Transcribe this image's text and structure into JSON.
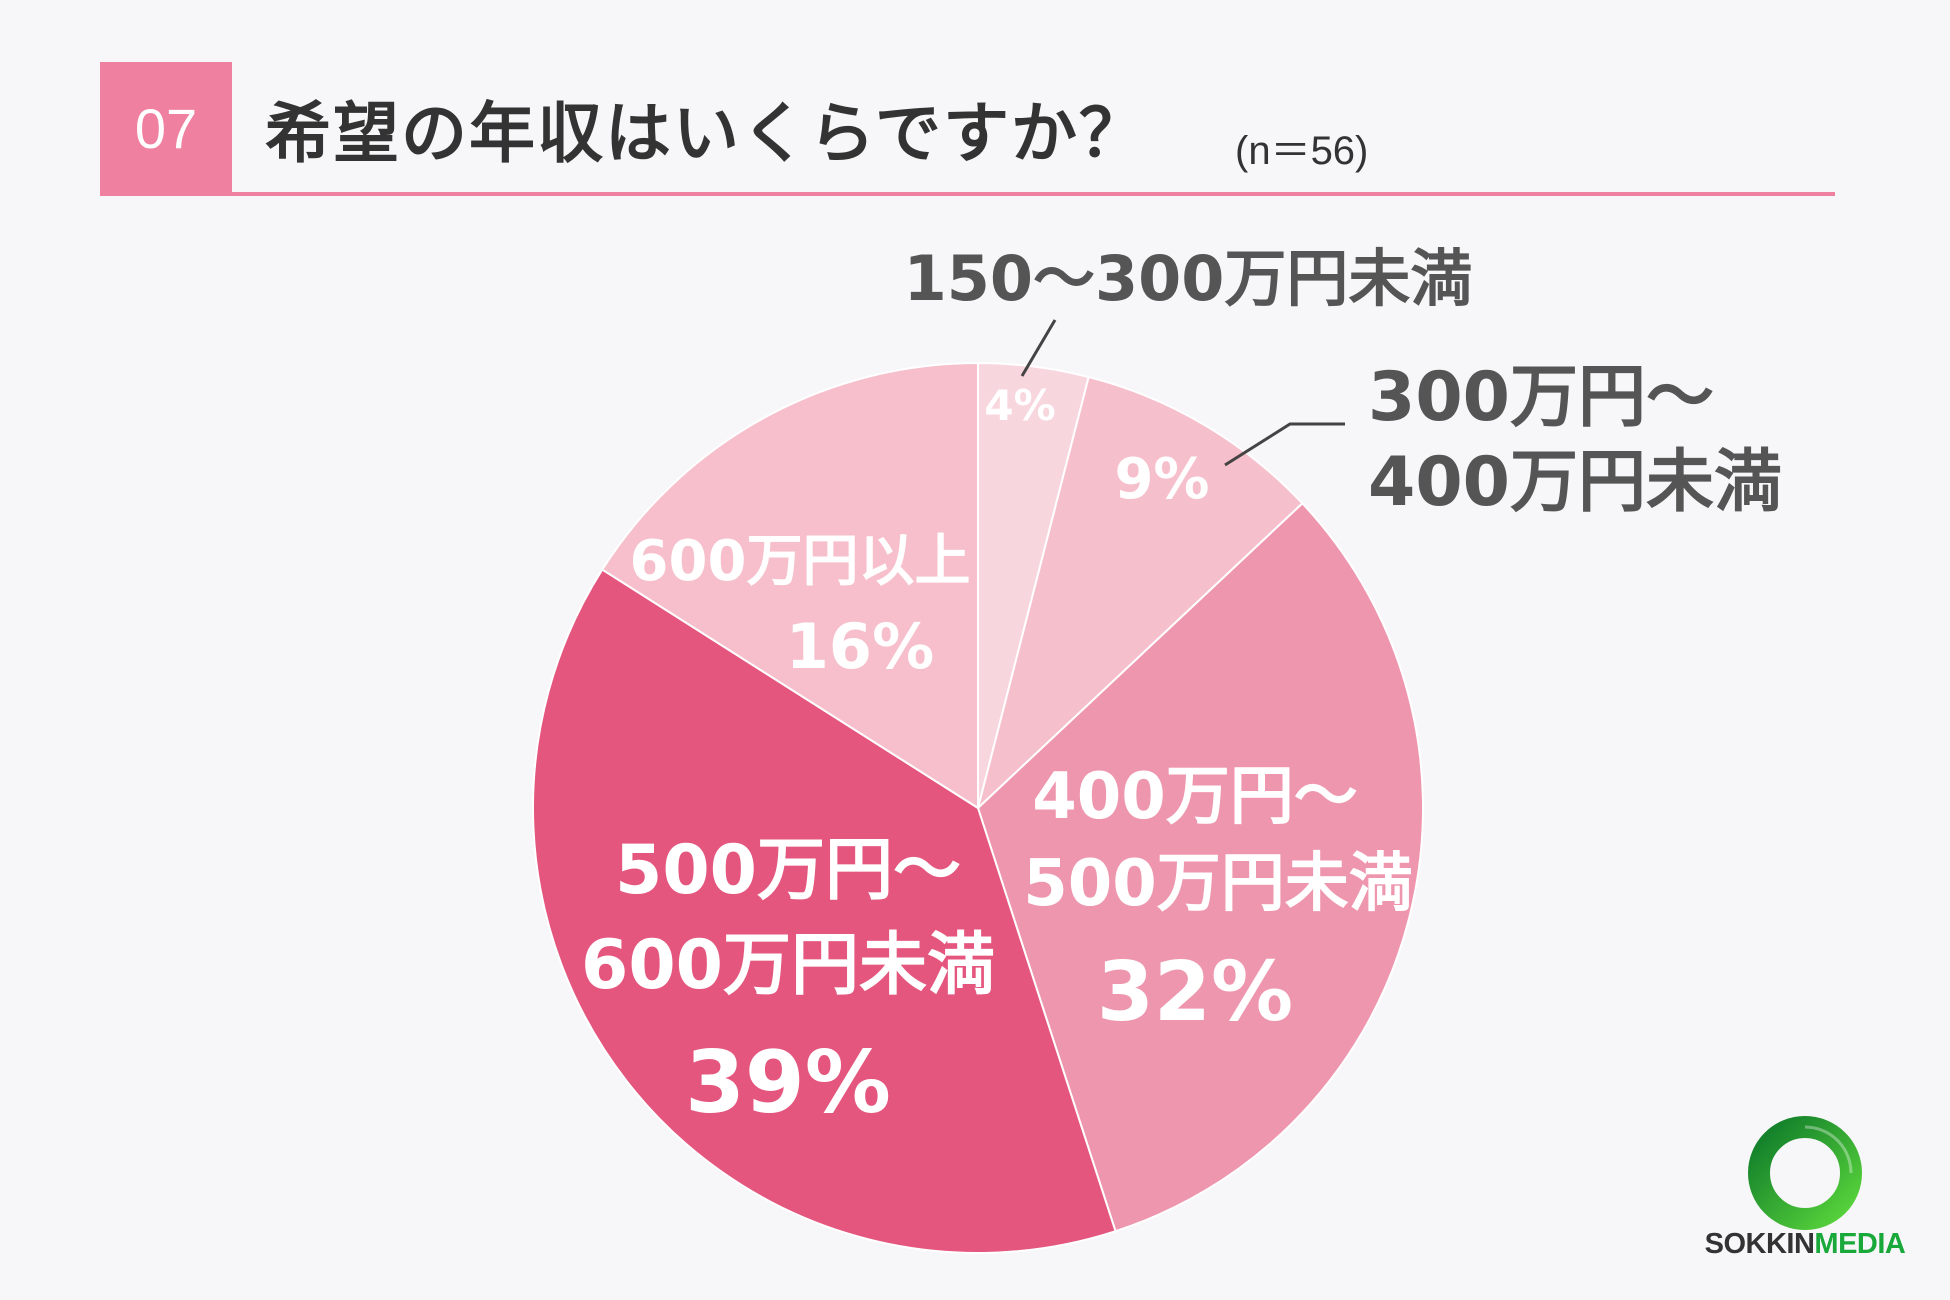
{
  "header": {
    "number": "07",
    "title": "希望の年収はいくらですか？",
    "sample": "(n＝56)"
  },
  "chart_data": {
    "type": "pie",
    "start": "top",
    "direction": "clockwise",
    "slices": [
      {
        "label_lines": [
          "150〜300万円未満"
        ],
        "value": 4,
        "pct": "4%",
        "color": "#f8d6de",
        "label_position": "outside"
      },
      {
        "label_lines": [
          "300万円〜",
          "400万円未満"
        ],
        "value": 9,
        "pct": "9%",
        "color": "#f6bfcc",
        "label_position": "outside"
      },
      {
        "label_lines": [
          "400万円〜",
          "500万円未満"
        ],
        "value": 32,
        "pct": "32%",
        "color": "#ee96ae",
        "label_position": "inside"
      },
      {
        "label_lines": [
          "500万円〜",
          "600万円未満"
        ],
        "value": 39,
        "pct": "39%",
        "color": "#e4567e",
        "label_position": "inside"
      },
      {
        "label_lines": [
          "600万円以上"
        ],
        "value": 16,
        "pct": "16%",
        "color": "#f6bfcb",
        "label_position": "inside"
      }
    ]
  },
  "logo": {
    "text_dark": "SOKKIN",
    "text_green": "MEDIA",
    "ring_colors": [
      "#0e7a2a",
      "#5bd63c"
    ]
  }
}
